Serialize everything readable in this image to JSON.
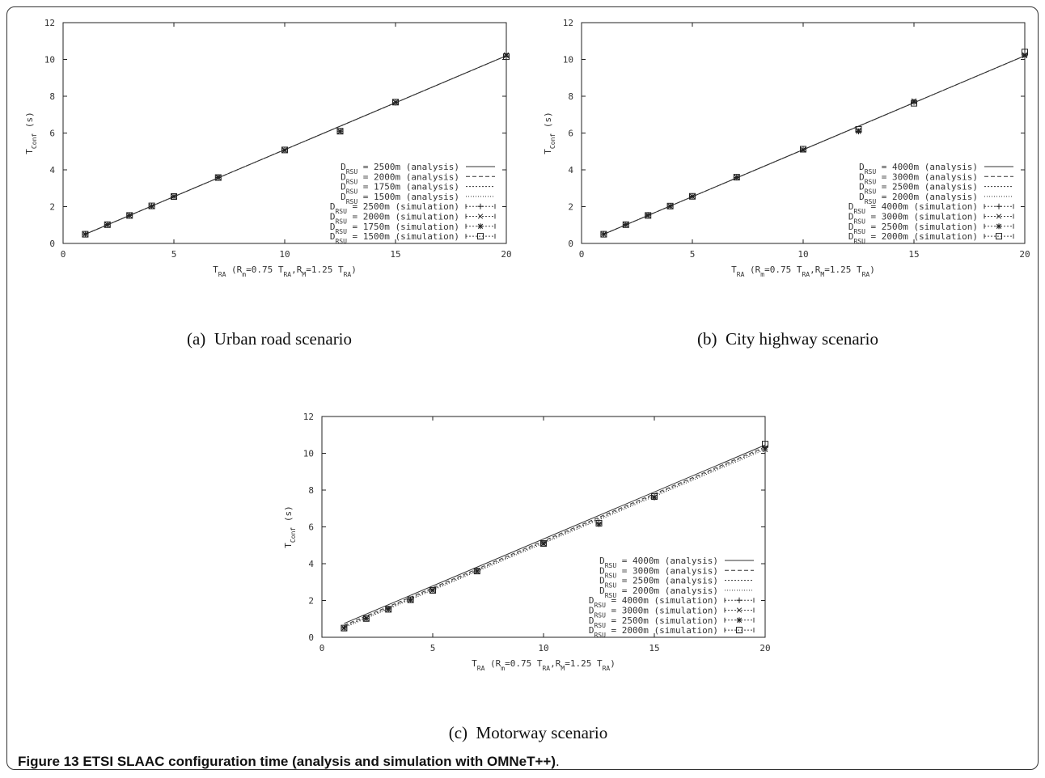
{
  "figure_caption": {
    "label": "Figure 13",
    "text": "ETSI SLAAC configuration time (analysis and simulation with OMNeT++)",
    "end": "."
  },
  "chart_data": [
    {
      "type": "line",
      "caption_label": "(a)",
      "caption_text": "Urban road scenario",
      "xlabel": {
        "main": "T",
        "sub": "RA",
        "rest_parts": [
          "  (R",
          "m",
          "=0.75 T",
          "RA",
          ",R",
          "M",
          "=1.25 T",
          "RA",
          ")"
        ]
      },
      "ylabel": {
        "main": "T",
        "sub": "Conf",
        "rest": "  (s)"
      },
      "xlim": [
        0,
        20
      ],
      "ylim": [
        0,
        12
      ],
      "xticks": [
        0,
        5,
        10,
        15,
        20
      ],
      "yticks": [
        0,
        2,
        4,
        6,
        8,
        10,
        12
      ],
      "legend_position": "bottom-right",
      "series": [
        {
          "name_pre": "D",
          "name_sub": "RSU",
          "name_post": " = 2500m (analysis)",
          "kind": "analysis",
          "dash": "",
          "x": [
            1,
            20
          ],
          "y": [
            0.5,
            10.2
          ]
        },
        {
          "name_pre": "D",
          "name_sub": "RSU",
          "name_post": " = 2000m (analysis)",
          "kind": "analysis",
          "dash": "5,3",
          "x": [
            1,
            20
          ],
          "y": [
            0.5,
            10.2
          ]
        },
        {
          "name_pre": "D",
          "name_sub": "RSU",
          "name_post": " = 1750m (analysis)",
          "kind": "analysis",
          "dash": "2,2",
          "x": [
            1,
            20
          ],
          "y": [
            0.5,
            10.2
          ]
        },
        {
          "name_pre": "D",
          "name_sub": "RSU",
          "name_post": " = 1500m (analysis)",
          "kind": "analysis",
          "dash": "1,2",
          "x": [
            1,
            20
          ],
          "y": [
            0.5,
            10.2
          ]
        },
        {
          "name_pre": "D",
          "name_sub": "RSU",
          "name_post": " = 2500m (simulation)",
          "kind": "simulation",
          "marker": "plus",
          "x": [
            1,
            2,
            3,
            4,
            5,
            7,
            10,
            12.5,
            15,
            20
          ],
          "y": [
            0.52,
            1.03,
            1.53,
            2.03,
            2.55,
            3.58,
            5.08,
            6.1,
            7.65,
            10.3
          ]
        },
        {
          "name_pre": "D",
          "name_sub": "RSU",
          "name_post": " = 2000m (simulation)",
          "kind": "simulation",
          "marker": "cross",
          "x": [
            1,
            2,
            3,
            4,
            5,
            7,
            10,
            12.5,
            15,
            20
          ],
          "y": [
            0.5,
            1.02,
            1.52,
            2.02,
            2.55,
            3.58,
            5.06,
            6.08,
            7.68,
            10.25
          ]
        },
        {
          "name_pre": "D",
          "name_sub": "RSU",
          "name_post": " = 1750m (simulation)",
          "kind": "simulation",
          "marker": "star",
          "x": [
            1,
            2,
            3,
            4,
            5,
            7,
            10,
            12.5,
            15,
            20
          ],
          "y": [
            0.5,
            1.02,
            1.52,
            2.02,
            2.56,
            3.6,
            5.08,
            6.1,
            7.66,
            10.2
          ]
        },
        {
          "name_pre": "D",
          "name_sub": "RSU",
          "name_post": " = 1500m (simulation)",
          "kind": "simulation",
          "marker": "square",
          "x": [
            1,
            2,
            3,
            4,
            5,
            7,
            10,
            12.5,
            15,
            20
          ],
          "y": [
            0.5,
            1.02,
            1.52,
            2.04,
            2.55,
            3.58,
            5.08,
            6.1,
            7.68,
            10.15
          ]
        }
      ]
    },
    {
      "type": "line",
      "caption_label": "(b)",
      "caption_text": "City highway scenario",
      "xlabel": {
        "main": "T",
        "sub": "RA",
        "rest_parts": [
          "  (R",
          "m",
          "=0.75 T",
          "RA",
          ",R",
          "M",
          "=1.25 T",
          "RA",
          ")"
        ]
      },
      "ylabel": {
        "main": "T",
        "sub": "Conf",
        "rest": "  (s)"
      },
      "xlim": [
        0,
        20
      ],
      "ylim": [
        0,
        12
      ],
      "xticks": [
        0,
        5,
        10,
        15,
        20
      ],
      "yticks": [
        0,
        2,
        4,
        6,
        8,
        10,
        12
      ],
      "legend_position": "bottom-right",
      "series": [
        {
          "name_pre": "D",
          "name_sub": "RSU",
          "name_post": " = 4000m (analysis)",
          "kind": "analysis",
          "dash": "",
          "x": [
            1,
            20
          ],
          "y": [
            0.5,
            10.2
          ]
        },
        {
          "name_pre": "D",
          "name_sub": "RSU",
          "name_post": " = 3000m (analysis)",
          "kind": "analysis",
          "dash": "5,3",
          "x": [
            1,
            20
          ],
          "y": [
            0.5,
            10.2
          ]
        },
        {
          "name_pre": "D",
          "name_sub": "RSU",
          "name_post": " = 2500m (analysis)",
          "kind": "analysis",
          "dash": "2,2",
          "x": [
            1,
            20
          ],
          "y": [
            0.5,
            10.2
          ]
        },
        {
          "name_pre": "D",
          "name_sub": "RSU",
          "name_post": " = 2000m (analysis)",
          "kind": "analysis",
          "dash": "1,2",
          "x": [
            1,
            20
          ],
          "y": [
            0.5,
            10.2
          ]
        },
        {
          "name_pre": "D",
          "name_sub": "RSU",
          "name_post": " = 4000m (simulation)",
          "kind": "simulation",
          "marker": "plus",
          "x": [
            1,
            2,
            3,
            4,
            5,
            7,
            10,
            12.5,
            15,
            20
          ],
          "y": [
            0.52,
            1.03,
            1.55,
            2.03,
            2.57,
            3.58,
            5.1,
            6.1,
            7.7,
            10.2
          ]
        },
        {
          "name_pre": "D",
          "name_sub": "RSU",
          "name_post": " = 3000m (simulation)",
          "kind": "simulation",
          "marker": "cross",
          "x": [
            1,
            2,
            3,
            4,
            5,
            7,
            10,
            12.5,
            15,
            20
          ],
          "y": [
            0.5,
            1.02,
            1.52,
            2.03,
            2.56,
            3.6,
            5.08,
            6.15,
            7.75,
            10.25
          ]
        },
        {
          "name_pre": "D",
          "name_sub": "RSU",
          "name_post": " = 2500m (simulation)",
          "kind": "simulation",
          "marker": "star",
          "x": [
            1,
            2,
            3,
            4,
            5,
            7,
            10,
            12.5,
            15,
            20
          ],
          "y": [
            0.5,
            1.02,
            1.53,
            2.02,
            2.55,
            3.58,
            5.1,
            6.08,
            7.68,
            10.2
          ]
        },
        {
          "name_pre": "D",
          "name_sub": "RSU",
          "name_post": " = 2000m (simulation)",
          "kind": "simulation",
          "marker": "square",
          "x": [
            1,
            2,
            3,
            4,
            5,
            7,
            10,
            12.5,
            15,
            20
          ],
          "y": [
            0.5,
            1.02,
            1.52,
            2.03,
            2.56,
            3.6,
            5.12,
            6.2,
            7.62,
            10.4
          ]
        }
      ]
    },
    {
      "type": "line",
      "caption_label": "(c)",
      "caption_text": "Motorway scenario",
      "xlabel": {
        "main": "T",
        "sub": "RA",
        "rest_parts": [
          "  (R",
          "m",
          "=0.75 T",
          "RA",
          ",R",
          "M",
          "=1.25 T",
          "RA",
          ")"
        ]
      },
      "ylabel": {
        "main": "T",
        "sub": "Conf",
        "rest": "  (s)"
      },
      "xlim": [
        0,
        20
      ],
      "ylim": [
        0,
        12
      ],
      "xticks": [
        0,
        5,
        10,
        15,
        20
      ],
      "yticks": [
        0,
        2,
        4,
        6,
        8,
        10,
        12
      ],
      "legend_position": "bottom-right",
      "series": [
        {
          "name_pre": "D",
          "name_sub": "RSU",
          "name_post": " = 4000m (analysis)",
          "kind": "analysis",
          "dash": "",
          "x": [
            1,
            20
          ],
          "y": [
            0.75,
            10.45
          ]
        },
        {
          "name_pre": "D",
          "name_sub": "RSU",
          "name_post": " = 3000m (analysis)",
          "kind": "analysis",
          "dash": "5,3",
          "x": [
            1,
            20
          ],
          "y": [
            0.65,
            10.35
          ]
        },
        {
          "name_pre": "D",
          "name_sub": "RSU",
          "name_post": " = 2500m (analysis)",
          "kind": "analysis",
          "dash": "2,2",
          "x": [
            1,
            20
          ],
          "y": [
            0.58,
            10.28
          ]
        },
        {
          "name_pre": "D",
          "name_sub": "RSU",
          "name_post": " = 2000m (analysis)",
          "kind": "analysis",
          "dash": "1,2",
          "x": [
            1,
            20
          ],
          "y": [
            0.52,
            10.2
          ]
        },
        {
          "name_pre": "D",
          "name_sub": "RSU",
          "name_post": " = 4000m (simulation)",
          "kind": "simulation",
          "marker": "plus",
          "x": [
            1,
            2,
            3,
            4,
            5,
            7,
            10,
            12.5,
            15,
            20
          ],
          "y": [
            0.52,
            1.03,
            1.55,
            2.03,
            2.57,
            3.6,
            5.12,
            6.2,
            7.6,
            10.35
          ]
        },
        {
          "name_pre": "D",
          "name_sub": "RSU",
          "name_post": " = 3000m (simulation)",
          "kind": "simulation",
          "marker": "cross",
          "x": [
            1,
            2,
            3,
            4,
            5,
            7,
            10,
            12.5,
            15,
            20
          ],
          "y": [
            0.5,
            1.02,
            1.52,
            2.02,
            2.55,
            3.58,
            5.08,
            6.15,
            7.62,
            10.2
          ]
        },
        {
          "name_pre": "D",
          "name_sub": "RSU",
          "name_post": " = 2500m (simulation)",
          "kind": "simulation",
          "marker": "star",
          "x": [
            1,
            2,
            3,
            4,
            5,
            7,
            10,
            12.5,
            15,
            20
          ],
          "y": [
            0.5,
            1.02,
            1.53,
            2.03,
            2.56,
            3.6,
            5.1,
            6.15,
            7.6,
            10.3
          ]
        },
        {
          "name_pre": "D",
          "name_sub": "RSU",
          "name_post": " = 2000m (simulation)",
          "kind": "simulation",
          "marker": "square",
          "x": [
            1,
            2,
            3,
            4,
            5,
            7,
            10,
            12.5,
            15,
            20
          ],
          "y": [
            0.5,
            1.02,
            1.52,
            2.04,
            2.55,
            3.6,
            5.1,
            6.2,
            7.65,
            10.5
          ]
        }
      ]
    }
  ]
}
